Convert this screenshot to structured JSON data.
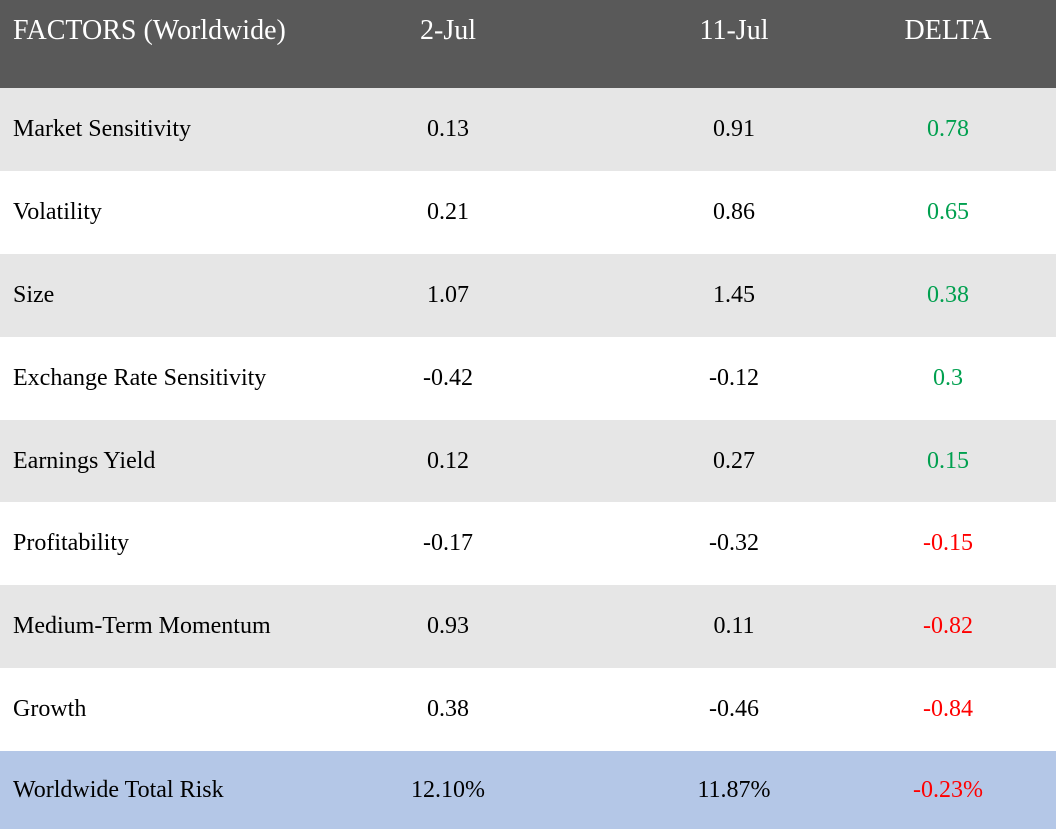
{
  "header": {
    "factor_label": "FACTORS (Worldwide)",
    "date1": "2-Jul",
    "date2": "11-Jul",
    "delta_label": "DELTA"
  },
  "colors": {
    "header_bg": "#595959",
    "row_shaded": "#e6e6e6",
    "row_plain": "#ffffff",
    "total_bg": "#b4c7e7",
    "positive": "#00a04f",
    "negative": "#ff0000"
  },
  "rows": [
    {
      "factor": "Market Sensitivity",
      "v1": "0.13",
      "v2": "0.91",
      "delta": "0.78"
    },
    {
      "factor": "Volatility",
      "v1": "0.21",
      "v2": "0.86",
      "delta": "0.65"
    },
    {
      "factor": "Size",
      "v1": "1.07",
      "v2": "1.45",
      "delta": "0.38"
    },
    {
      "factor": "Exchange Rate Sensitivity",
      "v1": "-0.42",
      "v2": "-0.12",
      "delta": "0.3"
    },
    {
      "factor": "Earnings Yield",
      "v1": "0.12",
      "v2": "0.27",
      "delta": "0.15"
    },
    {
      "factor": "Profitability",
      "v1": "-0.17",
      "v2": "-0.32",
      "delta": "-0.15"
    },
    {
      "factor": "Medium-Term Momentum",
      "v1": "0.93",
      "v2": "0.11",
      "delta": "-0.82"
    },
    {
      "factor": "Growth",
      "v1": "0.38",
      "v2": "-0.46",
      "delta": "-0.84"
    }
  ],
  "total": {
    "factor": "Worldwide Total Risk",
    "v1": "12.10%",
    "v2": "11.87%",
    "delta": "-0.23%"
  }
}
